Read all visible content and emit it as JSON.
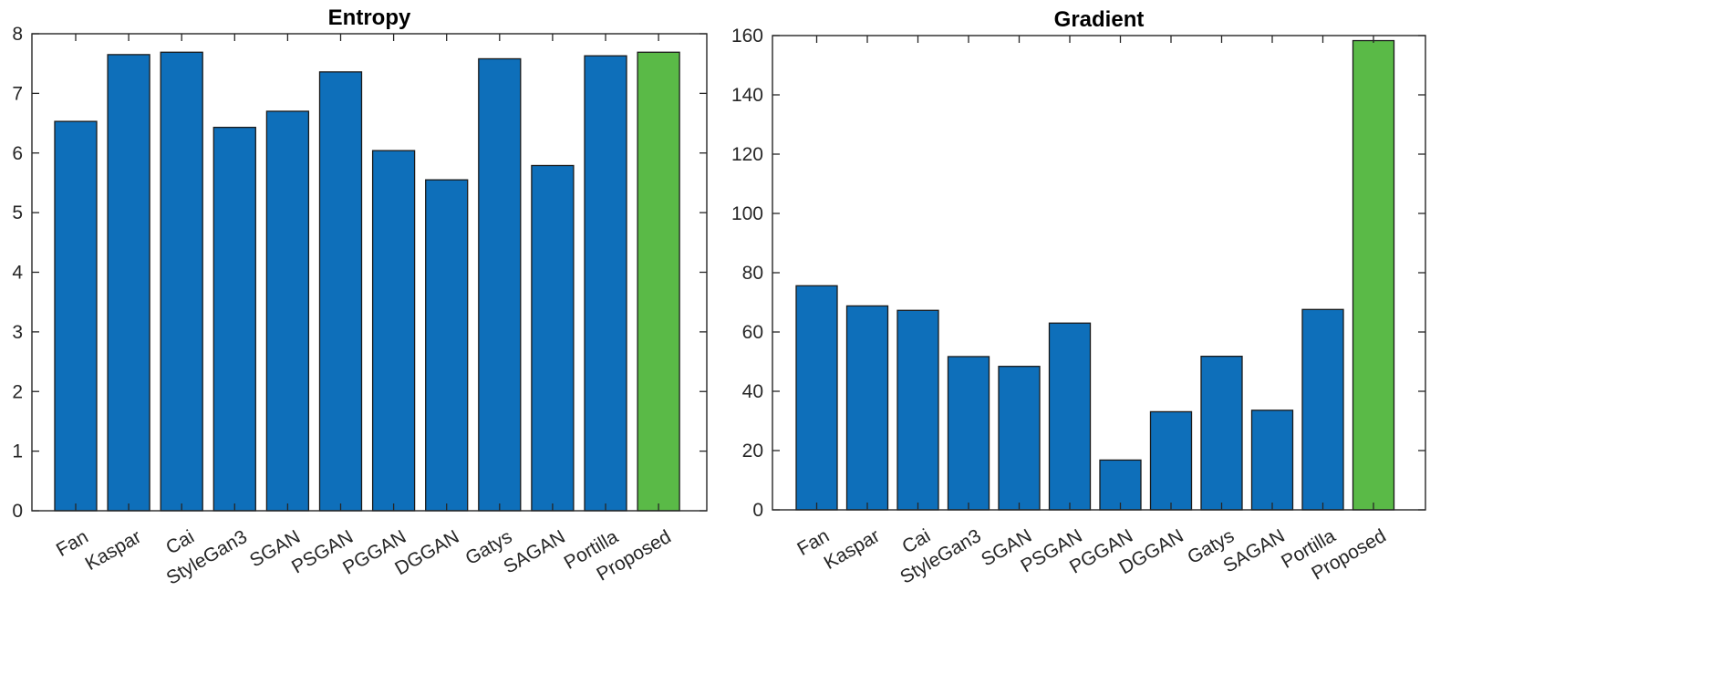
{
  "chart_data": [
    {
      "type": "bar",
      "title": "Entropy",
      "xlabel": "",
      "ylabel": "",
      "categories": [
        "Fan",
        "Kaspar",
        "Cai",
        "StyleGan3",
        "SGAN",
        "PSGAN",
        "PGGAN",
        "DGGAN",
        "Gatys",
        "SAGAN",
        "Portilla",
        "Proposed"
      ],
      "values": [
        6.53,
        7.65,
        7.69,
        6.43,
        6.7,
        7.36,
        6.04,
        5.55,
        7.58,
        5.79,
        7.63,
        7.69
      ],
      "ylim": [
        0,
        8
      ],
      "yticks": [
        0,
        1,
        2,
        3,
        4,
        5,
        6,
        7,
        8
      ],
      "grid": false,
      "colors": {
        "default": "#0e6fba",
        "highlight": "#5aba47"
      },
      "highlight_category": "Proposed"
    },
    {
      "type": "bar",
      "title": "Gradient",
      "xlabel": "",
      "ylabel": "",
      "categories": [
        "Fan",
        "Kaspar",
        "Cai",
        "StyleGan3",
        "SGAN",
        "PSGAN",
        "PGGAN",
        "DGGAN",
        "Gatys",
        "SAGAN",
        "Portilla",
        "Proposed"
      ],
      "values": [
        75.6,
        68.8,
        67.3,
        51.7,
        48.4,
        63.0,
        16.8,
        33.1,
        51.8,
        33.6,
        67.6,
        158.3
      ],
      "ylim": [
        0,
        160
      ],
      "yticks": [
        0,
        20,
        40,
        60,
        80,
        100,
        120,
        140,
        160
      ],
      "grid": false,
      "colors": {
        "default": "#0e6fba",
        "highlight": "#5aba47"
      },
      "highlight_category": "Proposed"
    }
  ]
}
